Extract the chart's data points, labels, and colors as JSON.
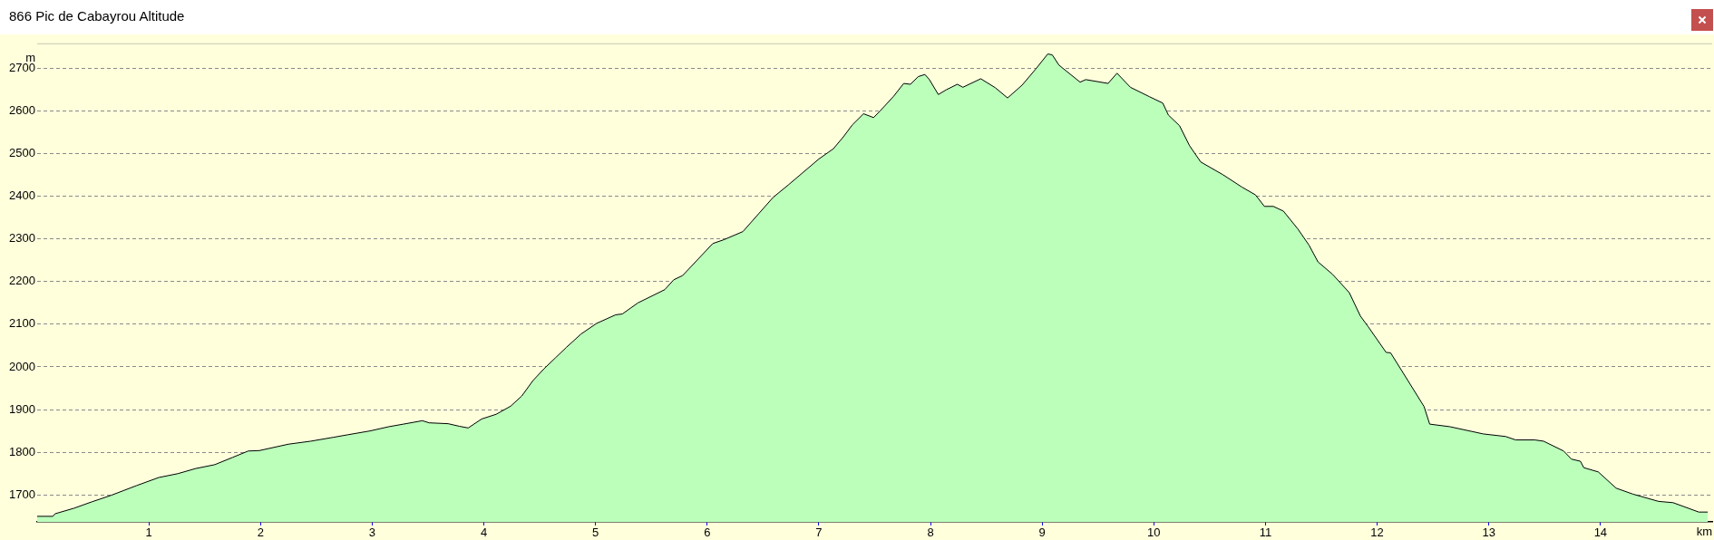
{
  "chart_data": {
    "type": "area",
    "title": "866 Pic de Cabayrou Altitude",
    "xlabel": "km",
    "ylabel": "m",
    "color": "#bbffbb",
    "marker": "none",
    "grid": "y",
    "xlim": [
      0,
      15
    ],
    "xticks": [
      1,
      2,
      3,
      4,
      5,
      6,
      7,
      8,
      9,
      10,
      11,
      12,
      13,
      14
    ],
    "ylim": [
      1637,
      2758
    ],
    "yticks": [
      1700,
      1800,
      1900,
      2000,
      2100,
      2200,
      2300,
      2400,
      2500,
      2600,
      2700
    ],
    "x": [
      0,
      0.14,
      0.16,
      0.33,
      0.49,
      0.66,
      0.89,
      1.09,
      1.26,
      1.42,
      1.59,
      1.75,
      1.89,
      1.99,
      2.25,
      2.45,
      2.65,
      2.78,
      2.98,
      3.15,
      3.28,
      3.45,
      3.51,
      3.68,
      3.78,
      3.86,
      3.98,
      4.11,
      4.24,
      4.34,
      4.44,
      4.54,
      4.64,
      4.74,
      4.87,
      5.01,
      5.18,
      5.24,
      5.38,
      5.62,
      5.7,
      5.78,
      6.05,
      6.15,
      6.32,
      6.59,
      6.73,
      7,
      7.13,
      7.22,
      7.3,
      7.4,
      7.49,
      7.55,
      7.67,
      7.76,
      7.82,
      7.89,
      7.95,
      7.99,
      8.07,
      8.14,
      8.24,
      8.29,
      8.45,
      8.58,
      8.69,
      8.82,
      8.94,
      9.05,
      9.09,
      9.15,
      9.34,
      9.39,
      9.59,
      9.67,
      9.79,
      9.96,
      10.08,
      10.13,
      10.23,
      10.32,
      10.42,
      10.62,
      10.79,
      10.91,
      10.99,
      11.07,
      11.16,
      11.29,
      11.39,
      11.47,
      11.6,
      11.75,
      11.85,
      11.92,
      12.08,
      12.12,
      12.28,
      12.42,
      12.47,
      12.65,
      12.95,
      13.15,
      13.24,
      13.41,
      13.49,
      13.67,
      13.74,
      13.82,
      13.85,
      13.98,
      14.14,
      14.29,
      14.52,
      14.65,
      14.88,
      14.96
    ],
    "values": [
      1650,
      1650,
      1656,
      1669,
      1684,
      1699,
      1722,
      1741,
      1750,
      1762,
      1771,
      1788,
      1803,
      1804,
      1819,
      1826,
      1835,
      1841,
      1850,
      1860,
      1866,
      1874,
      1869,
      1867,
      1861,
      1857,
      1878,
      1889,
      1908,
      1932,
      1968,
      1996,
      2021,
      2046,
      2077,
      2102,
      2122,
      2124,
      2150,
      2181,
      2204,
      2214,
      2289,
      2298,
      2317,
      2397,
      2427,
      2487,
      2511,
      2539,
      2567,
      2593,
      2584,
      2600,
      2634,
      2664,
      2662,
      2680,
      2685,
      2673,
      2638,
      2649,
      2662,
      2655,
      2675,
      2654,
      2630,
      2660,
      2697,
      2733,
      2731,
      2707,
      2667,
      2673,
      2664,
      2688,
      2655,
      2633,
      2618,
      2590,
      2565,
      2518,
      2480,
      2450,
      2421,
      2403,
      2376,
      2376,
      2365,
      2323,
      2285,
      2246,
      2217,
      2174,
      2119,
      2094,
      2034,
      2033,
      1966,
      1907,
      1866,
      1860,
      1843,
      1837,
      1829,
      1829,
      1826,
      1803,
      1784,
      1779,
      1764,
      1754,
      1716,
      1702,
      1685,
      1682,
      1660,
      1660
    ]
  }
}
